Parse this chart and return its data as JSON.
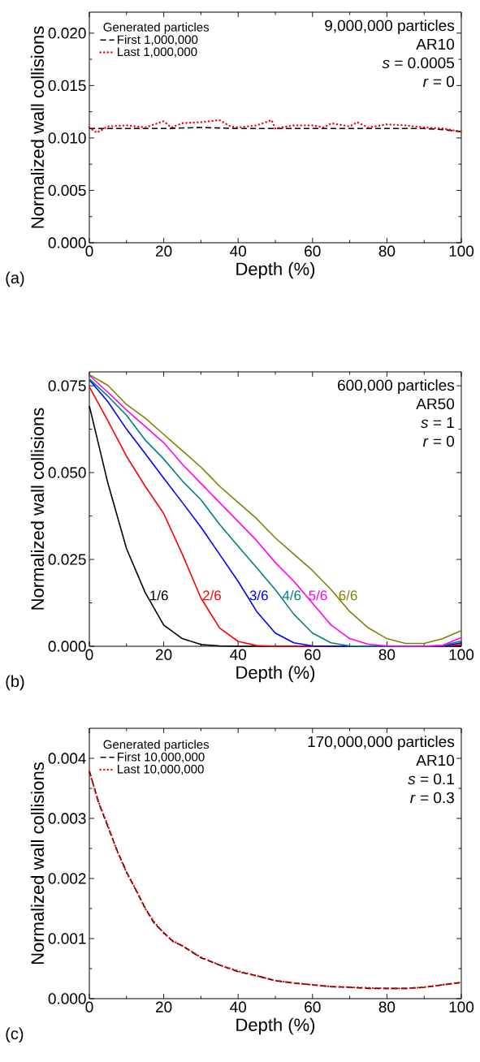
{
  "chart_data": [
    {
      "type": "line",
      "xlabel": "Depth (%)",
      "ylabel": "Normalized wall collisions",
      "legend_title": "Generated particles",
      "legend": "top left",
      "annotations": [
        "9,000,000 particles",
        "AR10",
        "*s* = 0.0005",
        "*r* = 0",
        "(a)"
      ],
      "xlim": [
        0,
        100
      ],
      "xticks": [
        0,
        20,
        40,
        60,
        80,
        100
      ],
      "ylim": [
        0,
        0.022
      ],
      "yticks": [
        {
          "value": 0,
          "label": "0.000"
        },
        {
          "value": 0.005,
          "label": "0.005"
        },
        {
          "value": 0.01,
          "label": "0.010"
        },
        {
          "value": 0.015,
          "label": "0.015"
        },
        {
          "value": 0.02,
          "label": "0.020"
        }
      ],
      "series": [
        {
          "name": "First 1,000,000",
          "color": "#000000",
          "line_style": "dashed",
          "x": [
            0,
            10,
            20,
            30,
            40,
            50,
            60,
            70,
            80,
            90,
            95,
            100
          ],
          "values": [
            0.0109,
            0.0109,
            0.0109,
            0.011,
            0.0109,
            0.0109,
            0.0109,
            0.0109,
            0.0109,
            0.0109,
            0.0108,
            0.0106
          ]
        },
        {
          "name": "Last 1,000,000",
          "color": "#ff0000",
          "line_style": "dotted",
          "x": [
            0,
            2,
            5,
            10,
            15,
            20,
            22,
            25,
            30,
            35,
            38,
            40,
            45,
            49,
            50,
            55,
            60,
            63,
            65,
            70,
            72,
            75,
            80,
            85,
            90,
            95,
            100
          ],
          "values": [
            0.011,
            0.0105,
            0.0111,
            0.0112,
            0.011,
            0.0116,
            0.011,
            0.0114,
            0.0115,
            0.0117,
            0.0111,
            0.011,
            0.0112,
            0.0117,
            0.0109,
            0.0112,
            0.0112,
            0.011,
            0.0114,
            0.0111,
            0.0115,
            0.011,
            0.0113,
            0.0112,
            0.011,
            0.0109,
            0.0106
          ]
        }
      ]
    },
    {
      "type": "line",
      "xlabel": "Depth (%)",
      "ylabel": "Normalized wall collisions",
      "annotations": [
        "600,000 particles",
        "AR50",
        "*s* = 1",
        "*r* = 0",
        "(b)"
      ],
      "xlim": [
        0,
        100
      ],
      "xticks": [
        0,
        20,
        40,
        60,
        80,
        100
      ],
      "ylim": [
        0,
        0.079
      ],
      "yticks": [
        {
          "value": 0,
          "label": "0.000"
        },
        {
          "value": 0.025,
          "label": "0.025"
        },
        {
          "value": 0.05,
          "label": "0.050"
        },
        {
          "value": 0.075,
          "label": "0.075"
        }
      ],
      "x": [
        0,
        5,
        10,
        15,
        20,
        25,
        30,
        35,
        40,
        45,
        50,
        55,
        60,
        65,
        70,
        75,
        80,
        85,
        90,
        95,
        100
      ],
      "series": [
        {
          "name": "1/6",
          "color": "#000000",
          "values": [
            0.0692,
            0.0469,
            0.0281,
            0.0155,
            0.0061,
            0.0022,
            0.0005,
            0.0001,
            0,
            0,
            0,
            0,
            0,
            0,
            0,
            0,
            0,
            0,
            0,
            0,
            0
          ]
        },
        {
          "name": "2/6",
          "color": "#ff0000",
          "values": [
            0.0747,
            0.0649,
            0.0547,
            0.0461,
            0.0382,
            0.0265,
            0.0139,
            0.0053,
            0.0014,
            0.0002,
            0,
            null,
            0,
            0,
            0,
            0,
            0,
            0,
            0,
            0,
            0.0005
          ]
        },
        {
          "name": "3/6",
          "color": "#0000ff",
          "values": [
            0.0767,
            0.0704,
            0.0625,
            0.0555,
            0.0484,
            0.0414,
            0.0343,
            0.0265,
            0.0187,
            0.01,
            0.0038,
            0.001,
            0.0001,
            0,
            0,
            0,
            0,
            0,
            0,
            0,
            0.001
          ]
        },
        {
          "name": "4/6",
          "color": "#008080",
          "values": [
            0.077,
            0.072,
            0.0665,
            0.0594,
            0.0539,
            0.0476,
            0.0422,
            0.0351,
            0.0288,
            0.0226,
            0.0163,
            0.0092,
            0.0038,
            0.001,
            0.0001,
            0,
            0,
            0,
            0,
            0.0002,
            0.0015
          ]
        },
        {
          "name": "5/6",
          "color": "#ff00ff",
          "values": [
            0.078,
            0.0731,
            0.068,
            0.0633,
            0.0586,
            0.0524,
            0.0469,
            0.0414,
            0.0359,
            0.0304,
            0.0241,
            0.0187,
            0.0124,
            0.0061,
            0.0022,
            0.0006,
            0.0001,
            0,
            0,
            0.0003,
            0.0025
          ]
        },
        {
          "name": "6/6",
          "color": "#808000",
          "values": [
            0.0782,
            0.0751,
            0.0696,
            0.0657,
            0.061,
            0.0563,
            0.0516,
            0.0461,
            0.0414,
            0.0367,
            0.0312,
            0.0265,
            0.0218,
            0.0163,
            0.01,
            0.0053,
            0.0022,
            0.0008,
            0.0008,
            0.0022,
            0.0045
          ]
        }
      ]
    },
    {
      "type": "line",
      "xlabel": "Depth (%)",
      "ylabel": "Normalized wall collisions",
      "legend_title": "Generated particles",
      "legend": "top left",
      "annotations": [
        "170,000,000 particles",
        "AR10",
        "*s* = 0.1",
        "*r* = 0.3",
        "(c)"
      ],
      "xlim": [
        0,
        100
      ],
      "xticks": [
        0,
        20,
        40,
        60,
        80,
        100
      ],
      "ylim": [
        0,
        0.0045
      ],
      "yticks": [
        {
          "value": 0,
          "label": "0.000"
        },
        {
          "value": 0.001,
          "label": "0.001"
        },
        {
          "value": 0.002,
          "label": "0.002"
        },
        {
          "value": 0.003,
          "label": "0.003"
        },
        {
          "value": 0.004,
          "label": "0.004"
        }
      ],
      "x": [
        0,
        2.5,
        5,
        7.5,
        10,
        12.5,
        15,
        17.5,
        20,
        22.5,
        25,
        30,
        35,
        40,
        45,
        50,
        55,
        60,
        65,
        70,
        75,
        80,
        85,
        90,
        95,
        100
      ],
      "series": [
        {
          "name": "First 10,000,000",
          "color": "#000000",
          "line_style": "dashed",
          "values": [
            0.00379,
            0.00326,
            0.00286,
            0.00246,
            0.00211,
            0.00181,
            0.00151,
            0.00125,
            0.0011,
            0.00095,
            0.00088,
            0.00068,
            0.00056,
            0.00045,
            0.00038,
            0.0003,
            0.00026,
            0.00023,
            0.0002,
            0.00019,
            0.00017,
            0.00017,
            0.00017,
            0.00019,
            0.00023,
            0.00027
          ]
        },
        {
          "name": "Last 10,000,000",
          "color": "#ff0000",
          "line_style": "dotted",
          "values": [
            0.00378,
            0.00327,
            0.00288,
            0.00245,
            0.0021,
            0.00182,
            0.0015,
            0.00127,
            0.00109,
            0.00096,
            0.00088,
            0.00069,
            0.00056,
            0.00046,
            0.00038,
            0.0003,
            0.00026,
            0.00023,
            0.0002,
            0.00019,
            0.00018,
            0.00017,
            0.00017,
            0.00019,
            0.00023,
            0.00027
          ]
        }
      ]
    }
  ]
}
